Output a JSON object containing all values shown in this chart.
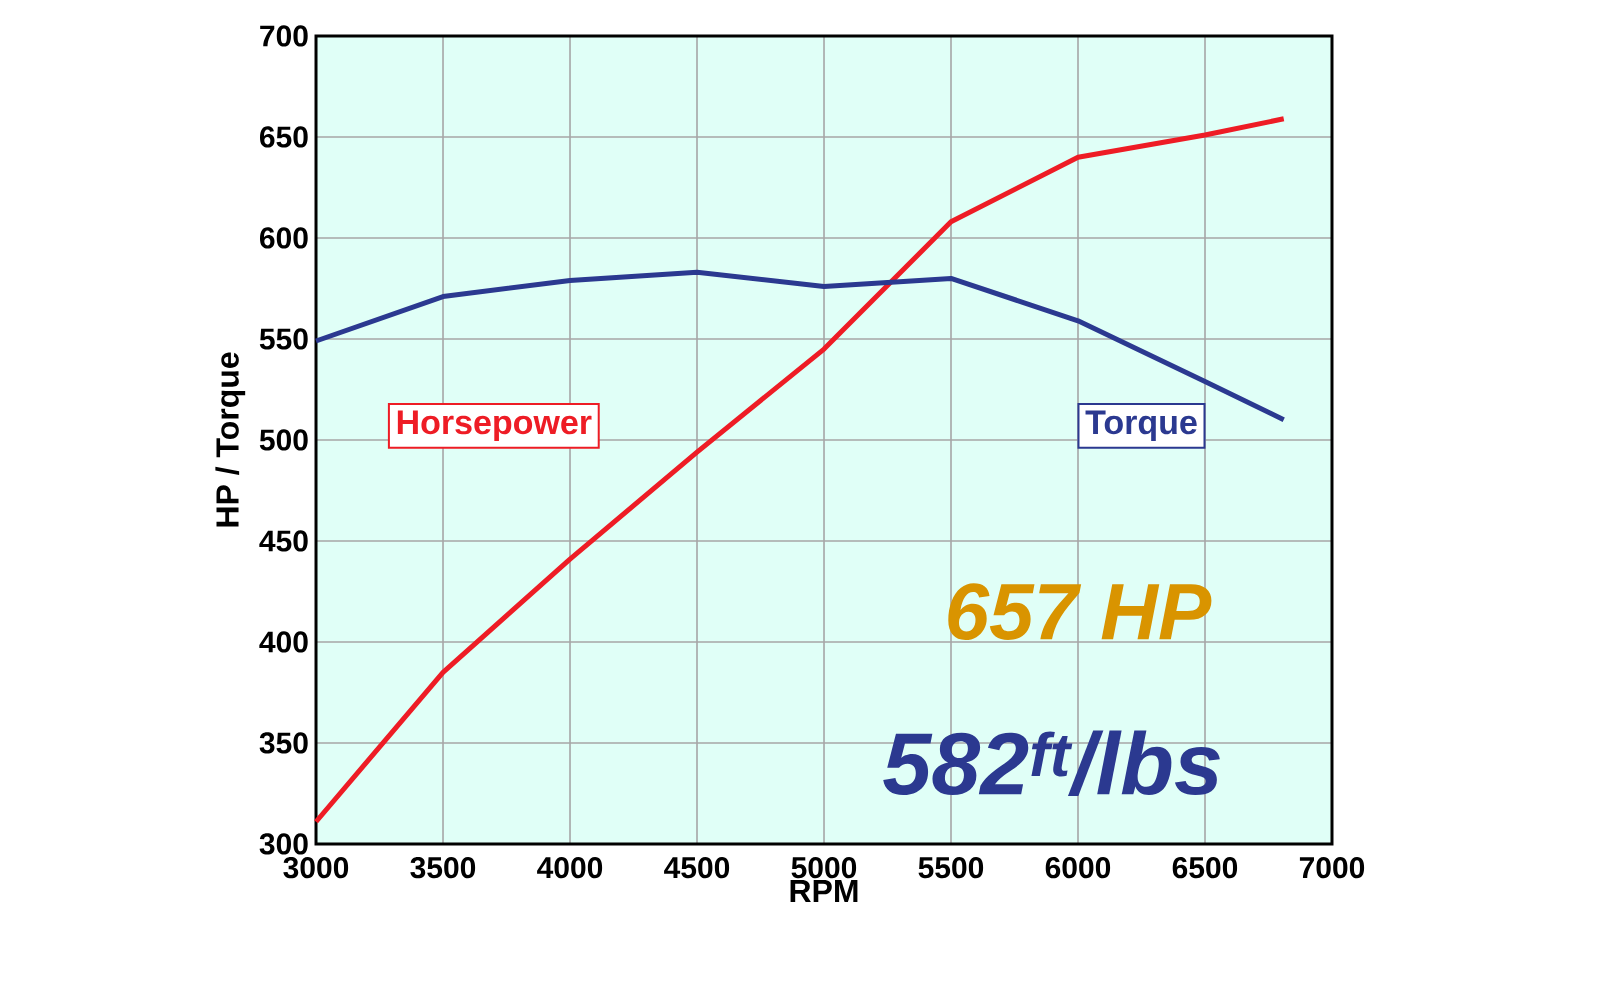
{
  "chart_data": {
    "type": "line",
    "xlabel": "RPM",
    "ylabel": "HP / Torque",
    "xlim": [
      3000,
      7000
    ],
    "ylim": [
      300,
      700
    ],
    "xticks": [
      3000,
      3500,
      4000,
      4500,
      5000,
      5500,
      6000,
      6500,
      7000
    ],
    "yticks": [
      300,
      350,
      400,
      450,
      500,
      550,
      600,
      650,
      700
    ],
    "grid": true,
    "marker": "none",
    "line_style": "solid",
    "series": [
      {
        "name": "Horsepower",
        "color": "#ee1c25",
        "x": [
          3000,
          3500,
          4000,
          4500,
          5000,
          5500,
          6000,
          6500,
          6810
        ],
        "values": [
          311,
          385,
          441,
          494,
          545,
          608,
          640,
          651,
          659
        ]
      },
      {
        "name": "Torque",
        "color": "#2b3990",
        "x": [
          3000,
          3500,
          4000,
          4500,
          5000,
          5500,
          6000,
          6500,
          6810
        ],
        "values": [
          549,
          571,
          579,
          583,
          576,
          580,
          559,
          529,
          510
        ]
      }
    ],
    "annotations": [
      "657 HP",
      "582$^{ft}$/lbs"
    ]
  }
}
